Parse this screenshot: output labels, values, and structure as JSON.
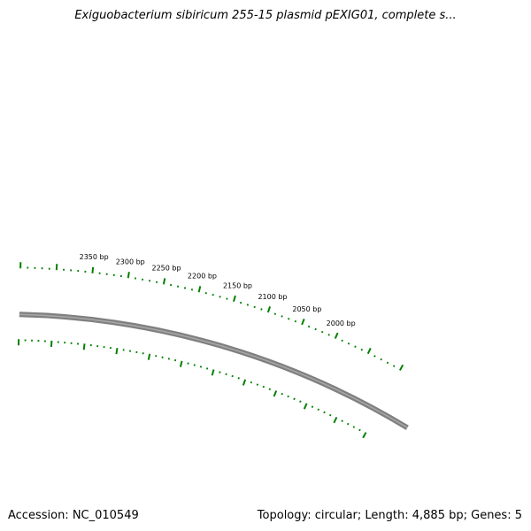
{
  "title": "Exiguobacterium sibiricum 255-15 plasmid pEXIG01, complete s...",
  "footer": {
    "accession": "Accession: NC_010549",
    "summary": "Topology: circular; Length: 4,885 bp; Genes: 5"
  },
  "map": {
    "topology": "circular",
    "length_bp": 4885,
    "genes": 5,
    "backbone_color": "#808080",
    "tick_color": "#008000",
    "label_color": "#000000",
    "tick_labels": [
      "2000 bp",
      "2050 bp",
      "2100 bp",
      "2150 bp",
      "2200 bp",
      "2250 bp",
      "2300 bp",
      "2350 bp"
    ],
    "tick_positions_bp": [
      2000,
      2050,
      2100,
      2150,
      2200,
      2250,
      2300,
      2350
    ]
  }
}
